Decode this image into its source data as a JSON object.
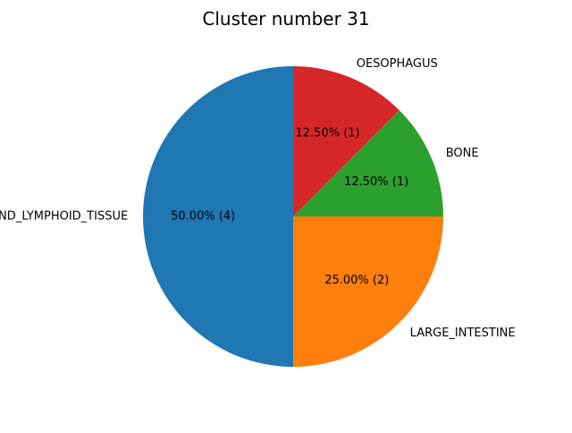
{
  "chart_data": {
    "type": "pie",
    "title": "Cluster number 31",
    "start_angle_deg": 90,
    "direction": "counterclockwise",
    "legend": "none",
    "slices": [
      {
        "label": "HAEMATOPOIETIC_AND_LYMPHOID_TISSUE",
        "count": 4,
        "percent": 50.0,
        "pct_text": "50.00%  (4)",
        "color": "#1f77b4"
      },
      {
        "label": "LARGE_INTESTINE",
        "count": 2,
        "percent": 25.0,
        "pct_text": "25.00%  (2)",
        "color": "#ff7f0e"
      },
      {
        "label": "BONE",
        "count": 1,
        "percent": 12.5,
        "pct_text": "12.50%  (1)",
        "color": "#2ca02c"
      },
      {
        "label": "OESOPHAGUS",
        "count": 1,
        "percent": 12.5,
        "pct_text": "12.50%  (1)",
        "color": "#d62728"
      }
    ]
  }
}
